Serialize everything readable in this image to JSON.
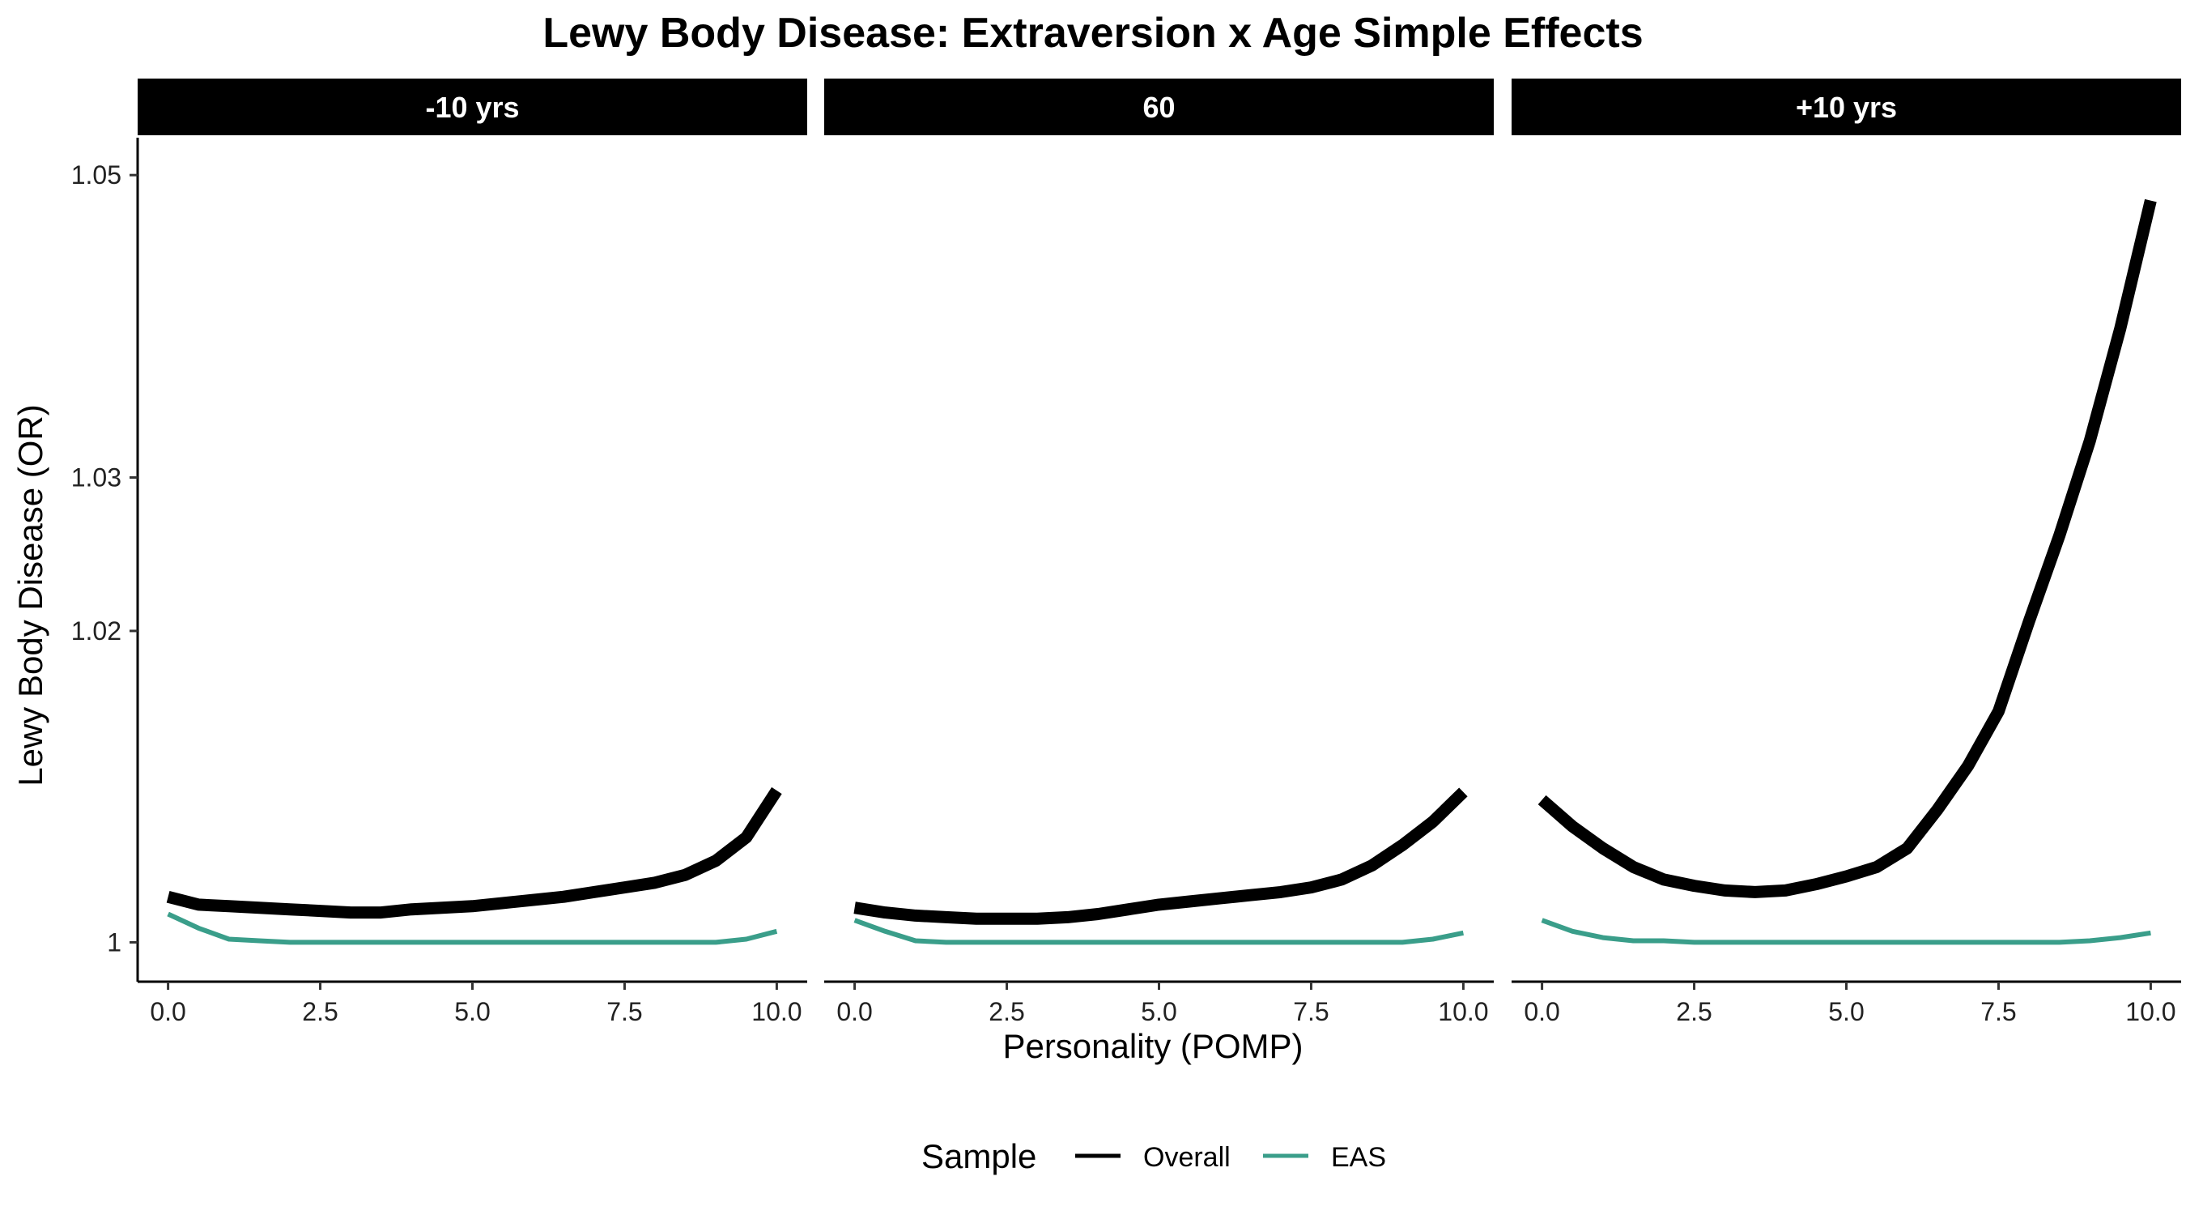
{
  "chart_data": {
    "type": "line",
    "title": "Lewy Body Disease: Extraversion x Age Simple Effects",
    "xlabel": "Personality (POMP)",
    "ylabel": "Lewy Body Disease (OR)",
    "xlim": [
      -0.5,
      10.5
    ],
    "ylim": [
      0.9975,
      1.0525
    ],
    "y_scale": "log",
    "x_ticks": [
      0,
      2.5,
      5,
      7.5,
      10
    ],
    "x_tick_labels": [
      "0.0",
      "2.5",
      "5.0",
      "7.5",
      "10.0"
    ],
    "y_ticks": [
      1,
      1.02,
      1.03,
      1.05
    ],
    "y_tick_labels": [
      "1",
      "1.02",
      "1.03",
      "1.05"
    ],
    "grid": false,
    "legend": {
      "title": "Sample",
      "position": "bottom",
      "entries": [
        {
          "label": "Overall",
          "color": "#000000"
        },
        {
          "label": "EAS",
          "color": "#3a9e8a"
        }
      ]
    },
    "panels": [
      {
        "label": "-10 yrs",
        "series": [
          {
            "name": "Overall",
            "color": "#000000",
            "x": [
              0,
              0.5,
              1,
              1.5,
              2,
              2.5,
              3,
              3.5,
              4,
              4.5,
              5,
              5.5,
              6,
              6.5,
              7,
              7.5,
              8,
              8.5,
              9,
              9.5,
              10
            ],
            "y": [
              1.0029,
              1.0024,
              1.0023,
              1.0022,
              1.0021,
              1.002,
              1.0019,
              1.0019,
              1.0021,
              1.0022,
              1.0023,
              1.0025,
              1.0027,
              1.0029,
              1.0032,
              1.0035,
              1.0038,
              1.0043,
              1.0052,
              1.0067,
              1.0097
            ]
          },
          {
            "name": "EAS",
            "color": "#3a9e8a",
            "x": [
              0,
              0.5,
              1,
              1.5,
              2,
              2.5,
              3,
              3.5,
              4,
              4.5,
              5,
              5.5,
              6,
              6.5,
              7,
              7.5,
              8,
              8.5,
              9,
              9.5,
              10
            ],
            "y": [
              1.0018,
              1.0009,
              1.0002,
              1.0001,
              1.0,
              1.0,
              1.0,
              1.0,
              1.0,
              1.0,
              1.0,
              1.0,
              1.0,
              1.0,
              1.0,
              1.0,
              1.0,
              1.0,
              1.0,
              1.0002,
              1.0007
            ]
          }
        ]
      },
      {
        "label": "60",
        "series": [
          {
            "name": "Overall",
            "color": "#000000",
            "x": [
              0,
              0.5,
              1,
              1.5,
              2,
              2.5,
              3,
              3.5,
              4,
              4.5,
              5,
              5.5,
              6,
              6.5,
              7,
              7.5,
              8,
              8.5,
              9,
              9.5,
              10
            ],
            "y": [
              1.0022,
              1.0019,
              1.0017,
              1.0016,
              1.0015,
              1.0015,
              1.0015,
              1.0016,
              1.0018,
              1.0021,
              1.0024,
              1.0026,
              1.0028,
              1.003,
              1.0032,
              1.0035,
              1.004,
              1.0049,
              1.0062,
              1.0077,
              1.0096
            ]
          },
          {
            "name": "EAS",
            "color": "#3a9e8a",
            "x": [
              0,
              0.5,
              1,
              1.5,
              2,
              2.5,
              3,
              3.5,
              4,
              4.5,
              5,
              5.5,
              6,
              6.5,
              7,
              7.5,
              8,
              8.5,
              9,
              9.5,
              10
            ],
            "y": [
              1.0014,
              1.0007,
              1.0001,
              1.0,
              1.0,
              1.0,
              1.0,
              1.0,
              1.0,
              1.0,
              1.0,
              1.0,
              1.0,
              1.0,
              1.0,
              1.0,
              1.0,
              1.0,
              1.0,
              1.0002,
              1.0006
            ]
          }
        ]
      },
      {
        "label": "+10 yrs",
        "series": [
          {
            "name": "Overall",
            "color": "#000000",
            "x": [
              0,
              0.5,
              1,
              1.5,
              2,
              2.5,
              3,
              3.5,
              4,
              4.5,
              5,
              5.5,
              6,
              6.5,
              7,
              7.5,
              8,
              8.5,
              9,
              9.5,
              10
            ],
            "y": [
              1.0091,
              1.0074,
              1.006,
              1.0048,
              1.004,
              1.0036,
              1.0033,
              1.0032,
              1.0033,
              1.0037,
              1.0042,
              1.0048,
              1.006,
              1.0085,
              1.0113,
              1.0148,
              1.0206,
              1.0262,
              1.0324,
              1.0398,
              1.0483
            ]
          },
          {
            "name": "EAS",
            "color": "#3a9e8a",
            "x": [
              0,
              0.5,
              1,
              1.5,
              2,
              2.5,
              3,
              3.5,
              4,
              4.5,
              5,
              5.5,
              6,
              6.5,
              7,
              7.5,
              8,
              8.5,
              9,
              9.5,
              10
            ],
            "y": [
              1.0014,
              1.0007,
              1.0003,
              1.0001,
              1.0001,
              1.0,
              1.0,
              1.0,
              1.0,
              1.0,
              1.0,
              1.0,
              1.0,
              1.0,
              1.0,
              1.0,
              1.0,
              1.0,
              1.0001,
              1.0003,
              1.0006
            ]
          }
        ]
      }
    ]
  }
}
